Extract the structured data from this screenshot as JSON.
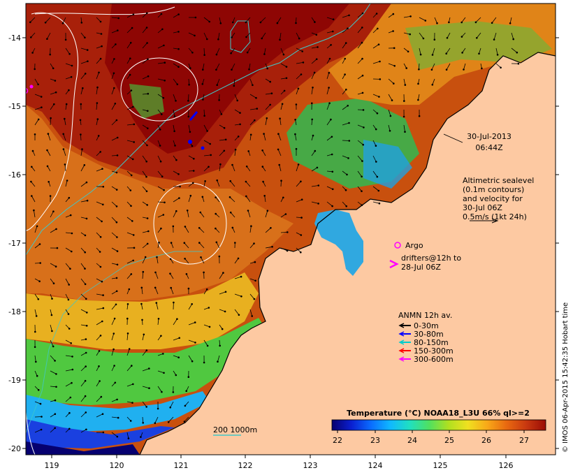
{
  "map": {
    "lon_ticks": [
      "119",
      "120",
      "121",
      "122",
      "123",
      "124",
      "125",
      "126"
    ],
    "lat_ticks": [
      "-14",
      "-15",
      "-16",
      "-17",
      "-18",
      "-19",
      "-20"
    ],
    "timestamp": {
      "date": "30-Jul-2013",
      "time": "06:44Z"
    },
    "altimetry_note": [
      "Altimetric sealevel",
      "(0.1m contours)",
      "and velocity for",
      "30-Jul 06Z",
      "0.5m/s (1kt 24h)"
    ],
    "argo_label": "Argo",
    "drifters_label": [
      "drifters@12h to",
      "28-Jul 06Z"
    ],
    "anmn": {
      "title": "ANMN 12h av.",
      "items": [
        {
          "label": "0-30m",
          "color": "#000000"
        },
        {
          "label": "30-80m",
          "color": "#0000ff"
        },
        {
          "label": "80-150m",
          "color": "#00cccc"
        },
        {
          "label": "150-300m",
          "color": "#ff0000"
        },
        {
          "label": "300-600m",
          "color": "#ff00ff"
        }
      ]
    },
    "isobath_label": "200  1000m",
    "colorbar": {
      "title": "Temperature (°C) NOAA18_L3U 66% ql>=2",
      "ticks": [
        "22",
        "23",
        "24",
        "25",
        "26",
        "27"
      ],
      "colors": [
        "#08006e",
        "#0a1fd0",
        "#0a6cff",
        "#10b8ff",
        "#20e0c0",
        "#50e060",
        "#b0e020",
        "#f0e020",
        "#f8a818",
        "#e86810",
        "#c83810",
        "#9a0c06"
      ]
    },
    "credit": "© IMOS 06-Apr-2015 15:42:35 Hobart time",
    "colors": {
      "land": "#fdc9a2",
      "sea_deep_warm": "#a40a04",
      "sea_warm": "#d86a16",
      "sea_mid": "#f0a818",
      "sea_green": "#40c840",
      "sea_cyan": "#20b8f0",
      "sea_blue": "#1040e0",
      "sea_navy": "#060070",
      "isobath": "#40c8c8",
      "contour": "#ffffff"
    }
  }
}
